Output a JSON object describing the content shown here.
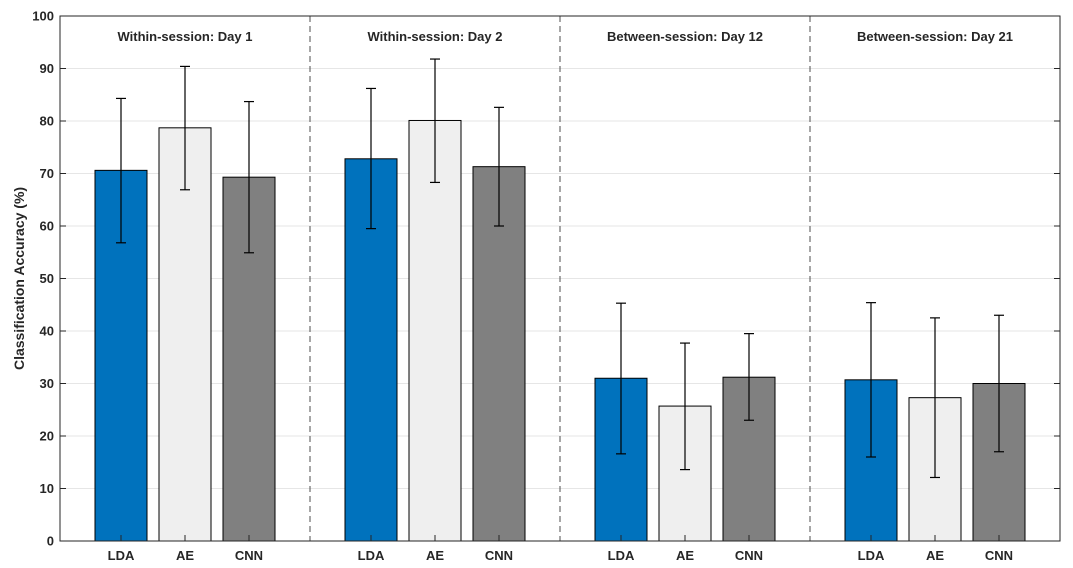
{
  "chart_data": {
    "type": "bar",
    "ylabel": "Classification Accuracy (%)",
    "xlabel": "",
    "ylim": [
      0,
      100
    ],
    "yticks": [
      0,
      10,
      20,
      30,
      40,
      50,
      60,
      70,
      80,
      90,
      100
    ],
    "grid": "horizontal",
    "categories": [
      "LDA",
      "AE",
      "CNN"
    ],
    "colors": {
      "LDA": "#0072bd",
      "AE": "#efefef",
      "CNN": "#808080"
    },
    "panels": [
      {
        "title": "Within-session: Day 1",
        "values": [
          70.6,
          78.7,
          69.3
        ],
        "error_low": [
          56.8,
          66.9,
          54.9
        ],
        "error_high": [
          84.3,
          90.4,
          83.7
        ]
      },
      {
        "title": "Within-session: Day 2",
        "values": [
          72.8,
          80.1,
          71.3
        ],
        "error_low": [
          59.5,
          68.3,
          60.0
        ],
        "error_high": [
          86.2,
          91.8,
          82.6
        ]
      },
      {
        "title": "Between-session: Day 12",
        "values": [
          31.0,
          25.7,
          31.2
        ],
        "error_low": [
          16.6,
          13.6,
          23.0
        ],
        "error_high": [
          45.3,
          37.7,
          39.5
        ]
      },
      {
        "title": "Between-session: Day 21",
        "values": [
          30.7,
          27.3,
          30.0
        ],
        "error_low": [
          16.0,
          12.1,
          17.0
        ],
        "error_high": [
          45.4,
          42.5,
          43.0
        ]
      }
    ]
  }
}
